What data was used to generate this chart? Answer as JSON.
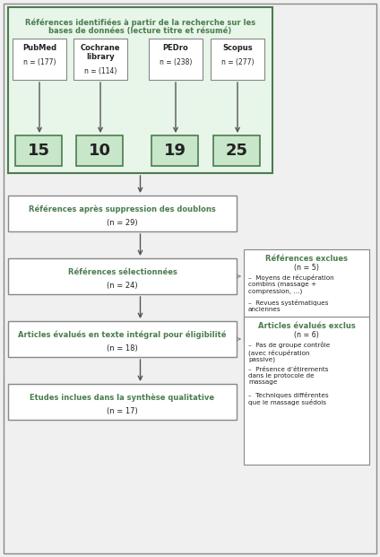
{
  "bg_color": "#f0f0f0",
  "outer_border_color": "#888888",
  "green_text": "#4a7c4e",
  "dark_text": "#222222",
  "box_green_fill": "#c8e6c9",
  "box_green_border": "#4a7c4e",
  "box_white_fill": "#ffffff",
  "box_gray_border": "#888888",
  "box_light_green_fill": "#e8f5e9",
  "top_box": {
    "line1": "Références identifiées à partir de la recherche sur les",
    "line2": "bases de données (lecture titre et résumé)"
  },
  "databases": [
    {
      "name": "PubMed",
      "n": "n = (177)",
      "value": "15"
    },
    {
      "name": "Cochrane\nlibrary",
      "n": "n = (114)",
      "value": "10"
    },
    {
      "name": "PEDro",
      "n": "n = (238)",
      "value": "19"
    },
    {
      "name": "Scopus",
      "n": "n = (277)",
      "value": "25"
    }
  ],
  "flow_boxes": [
    {
      "title": "Références après suppression des doublons",
      "n": "(n = 29)"
    },
    {
      "title": "Références sélectionnées",
      "n": "(n = 24)"
    },
    {
      "title": "Articles évalués en texte intégral pour éligibilité",
      "n": "(n = 18)"
    },
    {
      "title": "Etudes inclues dans la synthèse qualitative",
      "n": "(n = 17)"
    }
  ],
  "excl_box1": {
    "title": "Références exclues",
    "n": "(n = 5)",
    "bullets": [
      "Moyens de récupération\ncombins (massage +\ncompression, …)",
      "Revues systématiques\nanciennes"
    ]
  },
  "excl_box2": {
    "title": "Articles évalués exclus",
    "n": "(n = 6)",
    "bullets": [
      "Pas de groupe contrôle\n(avec récupération\npassive)",
      "Présence d’étirements\ndans le protocole de\nmassage",
      "Techniques différentes\nque le massage suédois"
    ]
  }
}
